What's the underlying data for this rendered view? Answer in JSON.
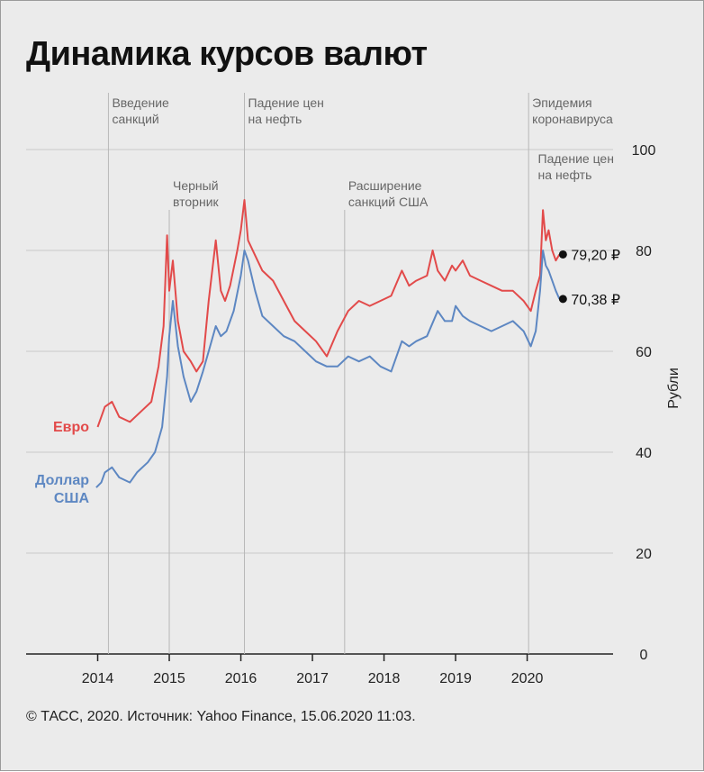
{
  "title": "Динамика курсов валют",
  "source": "© ТАСС, 2020. Источник: Yahoo Finance, 15.06.2020 11:03.",
  "colors": {
    "eur": "#e24a4a",
    "usd": "#5d87c2",
    "grid": "#c8c8c8",
    "axis": "#222222"
  },
  "chart_data": {
    "type": "line",
    "ylabel": "Рубли",
    "ylim": [
      0,
      100
    ],
    "yticks": [
      0,
      20,
      40,
      60,
      80,
      100
    ],
    "xlim": [
      2013.0,
      2021.2
    ],
    "xticks": [
      2014,
      2015,
      2016,
      2017,
      2018,
      2019,
      2020
    ],
    "annotations": [
      {
        "x": 2014.15,
        "text": [
          "Введение",
          "санкций"
        ],
        "row": "top"
      },
      {
        "x": 2015.0,
        "text": [
          "Черный",
          "вторник"
        ],
        "row": "mid"
      },
      {
        "x": 2016.05,
        "text": [
          "Падение цен",
          "на нефть"
        ],
        "row": "top"
      },
      {
        "x": 2017.45,
        "text": [
          "Расширение",
          "санкций США"
        ],
        "row": "mid"
      },
      {
        "x": 2020.02,
        "text": [
          "Эпидемия",
          "коронавируса"
        ],
        "row": "top"
      },
      {
        "x": 2020.1,
        "text": [
          "Падение цен",
          "на нефть"
        ],
        "row": "sub"
      }
    ],
    "series": [
      {
        "name": "Евро",
        "end_label": "79,20 ₽",
        "end_value": 79.2,
        "x": [
          2014.0,
          2014.05,
          2014.1,
          2014.2,
          2014.3,
          2014.45,
          2014.6,
          2014.75,
          2014.85,
          2014.92,
          2014.97,
          2015.0,
          2015.05,
          2015.12,
          2015.2,
          2015.3,
          2015.38,
          2015.47,
          2015.55,
          2015.65,
          2015.72,
          2015.78,
          2015.85,
          2015.95,
          2016.0,
          2016.05,
          2016.1,
          2016.2,
          2016.3,
          2016.45,
          2016.6,
          2016.75,
          2016.9,
          2017.05,
          2017.2,
          2017.35,
          2017.5,
          2017.65,
          2017.8,
          2017.95,
          2018.1,
          2018.25,
          2018.35,
          2018.45,
          2018.6,
          2018.68,
          2018.75,
          2018.85,
          2018.95,
          2019.0,
          2019.1,
          2019.2,
          2019.35,
          2019.5,
          2019.65,
          2019.8,
          2019.95,
          2020.05,
          2020.12,
          2020.18,
          2020.22,
          2020.26,
          2020.3,
          2020.35,
          2020.4,
          2020.45
        ],
        "values": [
          45,
          47,
          49,
          50,
          47,
          46,
          48,
          50,
          57,
          65,
          83,
          72,
          78,
          66,
          60,
          58,
          56,
          58,
          70,
          82,
          72,
          70,
          73,
          80,
          84,
          90,
          82,
          79,
          76,
          74,
          70,
          66,
          64,
          62,
          59,
          64,
          68,
          70,
          69,
          70,
          71,
          76,
          73,
          74,
          75,
          80,
          76,
          74,
          77,
          76,
          78,
          75,
          74,
          73,
          72,
          72,
          70,
          68,
          72,
          75,
          88,
          82,
          84,
          80,
          78,
          79.2
        ]
      },
      {
        "name": "Доллар США",
        "end_label": "70,38 ₽",
        "end_value": 70.38,
        "x": [
          2013.98,
          2014.05,
          2014.1,
          2014.2,
          2014.3,
          2014.45,
          2014.55,
          2014.7,
          2014.8,
          2014.9,
          2014.97,
          2015.0,
          2015.05,
          2015.12,
          2015.2,
          2015.3,
          2015.38,
          2015.47,
          2015.55,
          2015.65,
          2015.72,
          2015.8,
          2015.9,
          2016.0,
          2016.05,
          2016.1,
          2016.2,
          2016.3,
          2016.45,
          2016.6,
          2016.75,
          2016.9,
          2017.05,
          2017.2,
          2017.35,
          2017.5,
          2017.65,
          2017.8,
          2017.95,
          2018.1,
          2018.25,
          2018.35,
          2018.45,
          2018.6,
          2018.75,
          2018.85,
          2018.95,
          2019.0,
          2019.1,
          2019.2,
          2019.35,
          2019.5,
          2019.65,
          2019.8,
          2019.95,
          2020.05,
          2020.12,
          2020.18,
          2020.22,
          2020.26,
          2020.3,
          2020.35,
          2020.4,
          2020.45
        ],
        "values": [
          33,
          34,
          36,
          37,
          35,
          34,
          36,
          38,
          40,
          45,
          55,
          63,
          70,
          61,
          55,
          50,
          52,
          56,
          60,
          65,
          63,
          64,
          68,
          75,
          80,
          78,
          72,
          67,
          65,
          63,
          62,
          60,
          58,
          57,
          57,
          59,
          58,
          59,
          57,
          56,
          62,
          61,
          62,
          63,
          68,
          66,
          66,
          69,
          67,
          66,
          65,
          64,
          65,
          66,
          64,
          61,
          64,
          72,
          80,
          77,
          76,
          74,
          72,
          70.38
        ]
      }
    ]
  }
}
